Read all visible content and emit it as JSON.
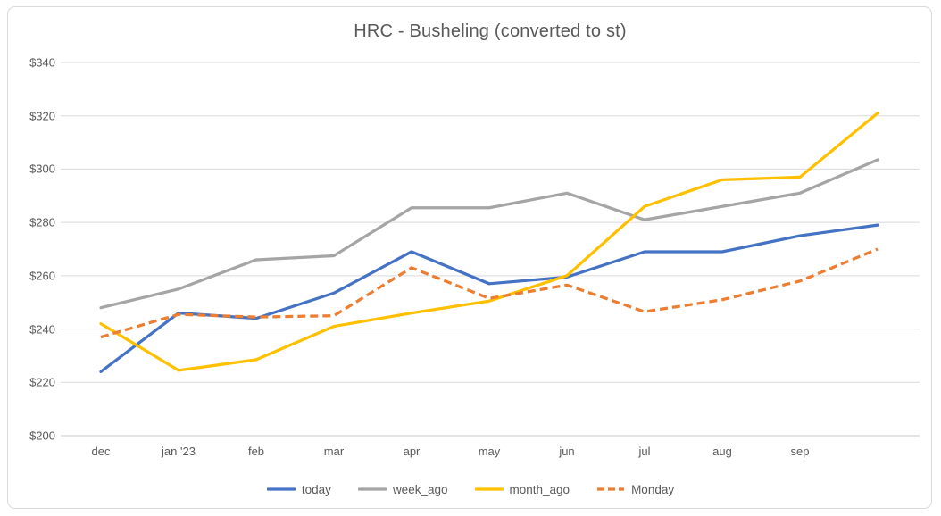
{
  "chart": {
    "title": "HRC - Busheling (converted to st)"
  },
  "chart_data": {
    "type": "line",
    "title": "HRC - Busheling (converted to st)",
    "x_labels": [
      "dec",
      "jan '23",
      "feb",
      "mar",
      "apr",
      "may",
      "jun",
      "jul",
      "aug",
      "sep",
      ""
    ],
    "series": [
      {
        "name": "today",
        "color": "#4472C4",
        "line_style": "solid",
        "values": [
          224,
          246,
          244,
          253.5,
          269,
          257,
          259.5,
          269,
          269,
          275,
          279
        ]
      },
      {
        "name": "week_ago",
        "color": "#A5A5A5",
        "line_style": "solid",
        "values": [
          248,
          255,
          266,
          267.5,
          285.5,
          285.5,
          291,
          281,
          286,
          291,
          303.5
        ]
      },
      {
        "name": "month_ago",
        "color": "#FFC000",
        "line_style": "solid",
        "values": [
          242,
          224.5,
          228.5,
          241,
          246,
          250.5,
          260,
          286,
          296,
          297,
          321
        ]
      },
      {
        "name": "Monday",
        "color": "#ED7D31",
        "line_style": "dashed",
        "values": [
          237,
          245.5,
          244.5,
          245,
          263,
          251.5,
          256.5,
          246.5,
          251,
          258,
          270
        ]
      }
    ],
    "y_ticks": [
      340,
      320,
      300,
      280,
      260,
      240,
      220,
      200
    ],
    "y_tick_labels": [
      "$340",
      "$320",
      "$300",
      "$280",
      "$260",
      "$240",
      "$220",
      "$200"
    ],
    "ylim": [
      200,
      340
    ],
    "xlabel": "",
    "ylabel": "",
    "grid": true,
    "legend_position": "bottom"
  },
  "colors": {
    "title_text": "#595959",
    "axis_text": "#595959",
    "gridline": "#D9D9D9",
    "axis_line": "#C9C9C9",
    "frame_border": "#D9D9D9",
    "background": "#FFFFFF"
  }
}
